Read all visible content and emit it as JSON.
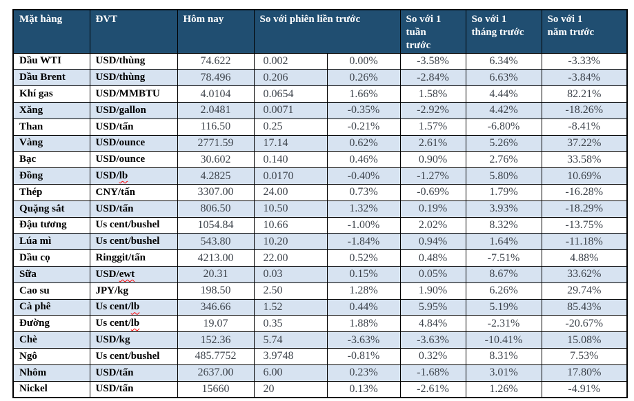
{
  "colors": {
    "header_bg": "#204e71",
    "header_fg": "#ffffff",
    "alt_row_bg": "#d7e3f1",
    "row_bg": "#ffffff",
    "border": "#000000",
    "number_fg": "#3d434b",
    "name_fg": "#000000",
    "spellcheck_squiggle": "#ff0000"
  },
  "table": {
    "columns": {
      "item": "Mặt hàng",
      "unit": "ĐVT",
      "today": "Hôm nay",
      "vs_prev_session": "So với phiên liền trước",
      "vs_week": "So với 1\ntuần\ntrước",
      "vs_month": "So với 1\ntháng trước",
      "vs_year": "So với 1\nnăm trước"
    },
    "rows": [
      {
        "name": "Dầu WTI",
        "unit": "USD/thùng",
        "today": "74.622",
        "change": "0.002",
        "change_pct": "0.00%",
        "week": "-3.58%",
        "month": "6.34%",
        "year": "-3.33%"
      },
      {
        "name": "Dầu Brent",
        "unit": "USD/thùng",
        "today": "78.496",
        "change": "0.206",
        "change_pct": "0.26%",
        "week": "-2.84%",
        "month": "6.63%",
        "year": "-3.84%"
      },
      {
        "name": "Khí gas",
        "unit": "USD/MMBTU",
        "today": "4.0104",
        "change": "0.0654",
        "change_pct": "1.66%",
        "week": "1.58%",
        "month": "4.44%",
        "year": "82.21%"
      },
      {
        "name": "Xăng",
        "unit": "USD/gallon",
        "today": "2.0481",
        "change": "0.0071",
        "change_pct": "-0.35%",
        "week": "-2.92%",
        "month": "4.42%",
        "year": "-18.26%"
      },
      {
        "name": "Than",
        "unit": "USD/tấn",
        "today": "116.50",
        "change": "0.25",
        "change_pct": "-0.21%",
        "week": "1.57%",
        "month": "-6.80%",
        "year": "-8.41%"
      },
      {
        "name": "Vàng",
        "unit": "USD/ounce",
        "today": "2771.59",
        "change": "17.14",
        "change_pct": "0.62%",
        "week": "2.61%",
        "month": "5.26%",
        "year": "37.22%"
      },
      {
        "name": "Bạc",
        "unit": "USD/ounce",
        "today": "30.602",
        "change": "0.140",
        "change_pct": "0.46%",
        "week": "0.90%",
        "month": "2.76%",
        "year": "33.58%"
      },
      {
        "name": "Đồng",
        "unit": "USD/lb",
        "flag": "lb",
        "today": "4.2825",
        "change": "0.0170",
        "change_pct": "-0.40%",
        "week": "-1.27%",
        "month": "5.80%",
        "year": "10.69%"
      },
      {
        "name": "Thép",
        "unit": "CNY/tấn",
        "today": "3307.00",
        "change": "24.00",
        "change_pct": "0.73%",
        "week": "-0.69%",
        "month": "1.79%",
        "year": "-16.28%"
      },
      {
        "name": "Quặng sắt",
        "unit": "USD/tấn",
        "today": "806.50",
        "change": "10.50",
        "change_pct": "1.32%",
        "week": "0.19%",
        "month": "3.93%",
        "year": "-18.29%"
      },
      {
        "name": "Đậu tương",
        "unit": "Us cent/bushel",
        "today": "1054.84",
        "change": "10.66",
        "change_pct": "-1.00%",
        "week": "2.02%",
        "month": "8.32%",
        "year": "-13.75%"
      },
      {
        "name": "Lúa mì",
        "unit": "Us cent/bushel",
        "today": "543.80",
        "change": "10.20",
        "change_pct": "-1.84%",
        "week": "0.94%",
        "month": "1.64%",
        "year": "-11.18%"
      },
      {
        "name": "Dầu cọ",
        "unit": "Ringgit/tấn",
        "today": "4213.00",
        "change": "22.00",
        "change_pct": "0.52%",
        "week": "0.48%",
        "month": "-7.51%",
        "year": "4.88%"
      },
      {
        "name": "Sữa",
        "unit": "USD/ewt",
        "flag": "ewt",
        "today": "20.31",
        "change": "0.03",
        "change_pct": "0.15%",
        "week": "0.05%",
        "month": "8.67%",
        "year": "33.62%"
      },
      {
        "name": "Cao su",
        "unit": "JPY/kg",
        "today": "198.50",
        "change": "2.50",
        "change_pct": "1.28%",
        "week": "1.90%",
        "month": "6.26%",
        "year": "29.74%"
      },
      {
        "name": "Cà phê",
        "unit": "Us cent/lb",
        "flag": "lb",
        "today": "346.66",
        "change": "1.52",
        "change_pct": "0.44%",
        "week": "5.95%",
        "month": "5.19%",
        "year": "85.43%"
      },
      {
        "name": "Đường",
        "unit": "Us cent/lb",
        "flag": "lb",
        "today": "19.07",
        "change": "0.35",
        "change_pct": "1.88%",
        "week": "4.84%",
        "month": "-2.31%",
        "year": "-20.67%"
      },
      {
        "name": "Chè",
        "unit": "USD/kg",
        "today": "152.36",
        "change": "5.74",
        "change_pct": "-3.63%",
        "week": "-3.63%",
        "month": "-10.41%",
        "year": "15.08%"
      },
      {
        "name": "Ngô",
        "unit": "Us cent/bushel",
        "today": "485.7752",
        "change": "3.9748",
        "change_pct": "-0.81%",
        "week": "0.32%",
        "month": "8.31%",
        "year": "7.53%"
      },
      {
        "name": "Nhôm",
        "unit": "USD/tấn",
        "today": "2637.00",
        "change": "6.00",
        "change_pct": "0.23%",
        "week": "-1.68%",
        "month": "3.01%",
        "year": "17.80%"
      },
      {
        "name": "Nickel",
        "unit": "USD/tấn",
        "today": "15660",
        "change": "20",
        "change_pct": "0.13%",
        "week": "-2.61%",
        "month": "1.26%",
        "year": "-4.91%"
      }
    ]
  }
}
